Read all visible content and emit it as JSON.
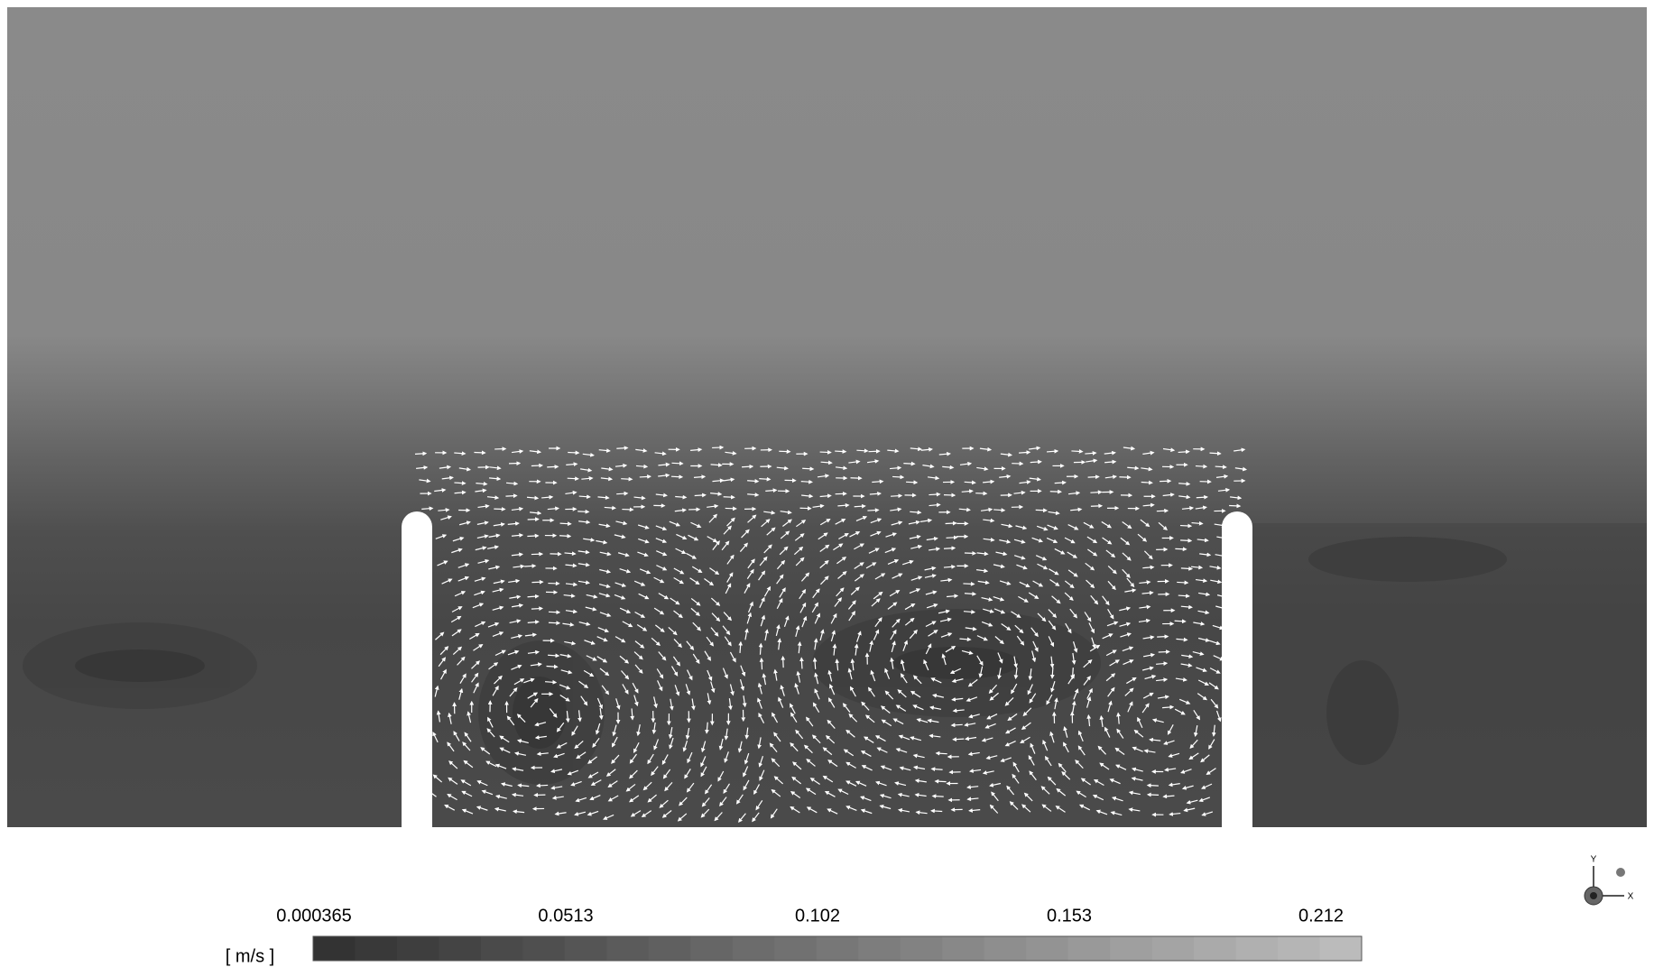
{
  "legend": {
    "unit": "[ m/s ]",
    "ticks": [
      "0.000365",
      "0.0513",
      "0.102",
      "0.153",
      "0.212"
    ]
  },
  "triad": {
    "x": "X",
    "y": "Y"
  }
}
